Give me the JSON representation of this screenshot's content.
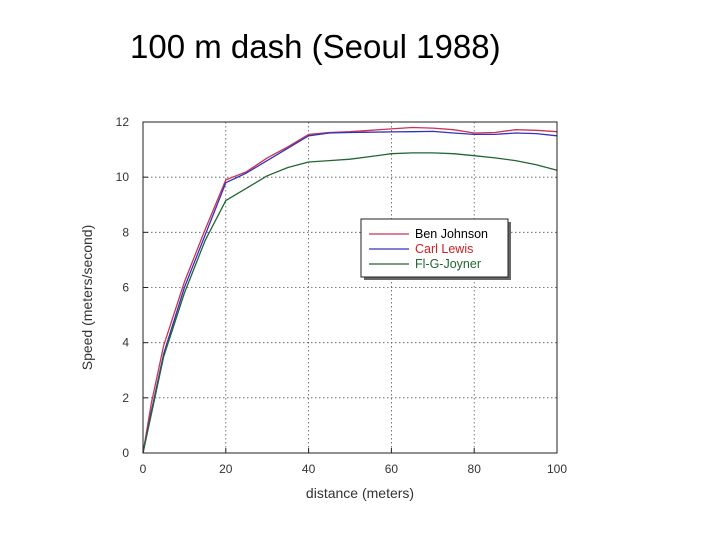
{
  "slide": {
    "title": "100 m dash (Seoul 1988)"
  },
  "chart_data": {
    "type": "line",
    "title": "",
    "xlabel": "distance (meters)",
    "ylabel": "Speed (meters/second)",
    "xlim": [
      0,
      100
    ],
    "ylim": [
      0,
      12
    ],
    "xticks": [
      0,
      20,
      40,
      60,
      80,
      100
    ],
    "yticks": [
      0,
      2,
      4,
      6,
      8,
      10,
      12
    ],
    "grid": true,
    "legend_position": "right",
    "series": [
      {
        "name": "Ben Johnson",
        "color": "#cc3355",
        "label_color": "#000000",
        "x": [
          0,
          2,
          5,
          10,
          15,
          20,
          25,
          30,
          35,
          40,
          45,
          50,
          55,
          60,
          65,
          70,
          75,
          80,
          85,
          90,
          95,
          100
        ],
        "y": [
          0,
          1.8,
          3.9,
          6.2,
          8.1,
          9.9,
          10.2,
          10.7,
          11.1,
          11.55,
          11.62,
          11.65,
          11.7,
          11.75,
          11.8,
          11.78,
          11.72,
          11.6,
          11.62,
          11.72,
          11.7,
          11.65
        ]
      },
      {
        "name": "Carl Lewis",
        "color": "#3333bb",
        "label_color": "#cc2222",
        "x": [
          0,
          2,
          5,
          10,
          15,
          20,
          25,
          30,
          35,
          40,
          45,
          50,
          55,
          60,
          65,
          70,
          75,
          80,
          85,
          90,
          95,
          100
        ],
        "y": [
          0,
          1.5,
          3.6,
          6.0,
          7.9,
          9.8,
          10.15,
          10.6,
          11.05,
          11.5,
          11.6,
          11.62,
          11.63,
          11.64,
          11.65,
          11.66,
          11.6,
          11.55,
          11.55,
          11.6,
          11.58,
          11.5
        ]
      },
      {
        "name": "Fl-G-Joyner",
        "color": "#226633",
        "label_color": "#226633",
        "x": [
          0,
          2,
          5,
          10,
          15,
          20,
          25,
          30,
          35,
          40,
          45,
          50,
          55,
          60,
          65,
          70,
          75,
          80,
          85,
          90,
          95,
          100
        ],
        "y": [
          0,
          1.4,
          3.5,
          5.8,
          7.7,
          9.15,
          9.6,
          10.05,
          10.35,
          10.55,
          10.6,
          10.65,
          10.75,
          10.85,
          10.88,
          10.88,
          10.85,
          10.78,
          10.7,
          10.6,
          10.45,
          10.25
        ]
      }
    ]
  }
}
